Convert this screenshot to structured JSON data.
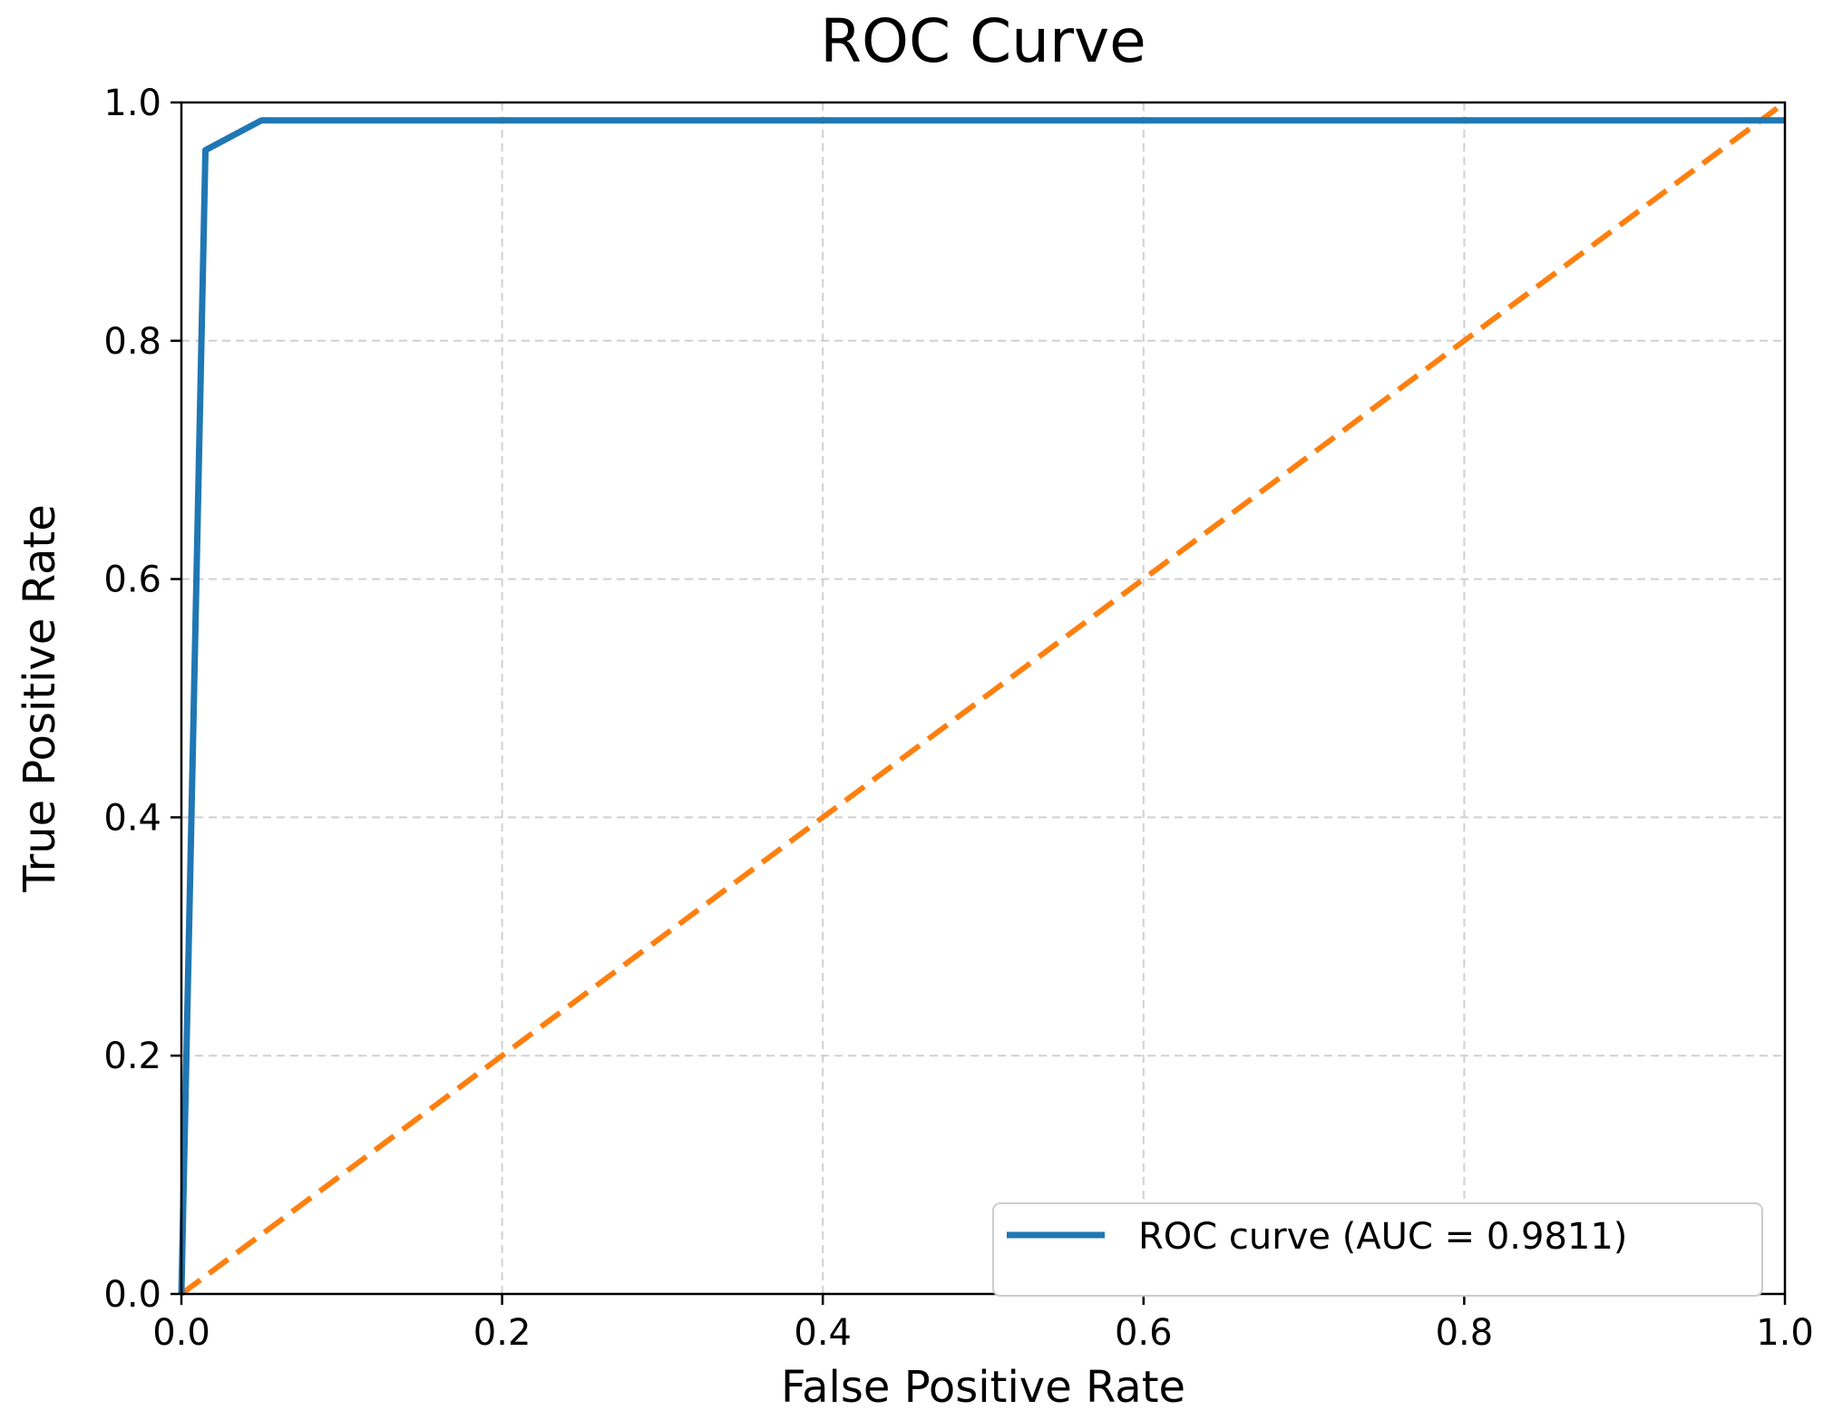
{
  "chart_data": {
    "type": "line",
    "title": "ROC Curve",
    "xlabel": "False Positive Rate",
    "ylabel": "True Positive Rate",
    "xlim": [
      0.0,
      1.0
    ],
    "ylim": [
      0.0,
      1.0
    ],
    "xticks": [
      "0.0",
      "0.2",
      "0.4",
      "0.6",
      "0.8",
      "1.0"
    ],
    "yticks": [
      "0.0",
      "0.2",
      "0.4",
      "0.6",
      "0.8",
      "1.0"
    ],
    "grid": true,
    "legend_position": "lower-right",
    "series": [
      {
        "name": "ROC curve (AUC = 0.9811)",
        "color": "#1f77b4",
        "style": "solid",
        "x": [
          0.0,
          0.015,
          0.05,
          1.0
        ],
        "y": [
          0.0,
          0.96,
          0.985,
          0.985
        ]
      },
      {
        "color": "#ff7f0e",
        "style": "dashed",
        "x": [
          0.0,
          1.0
        ],
        "y": [
          0.0,
          1.0
        ]
      }
    ]
  }
}
